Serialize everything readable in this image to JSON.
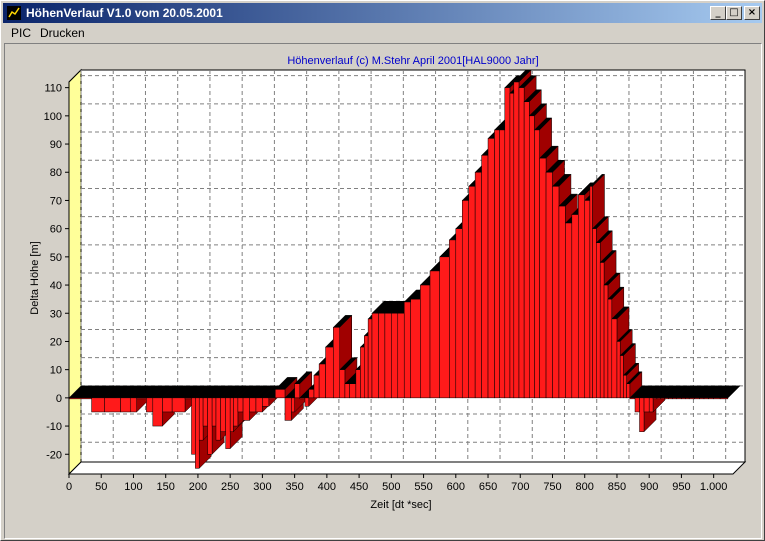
{
  "window": {
    "title": "HöhenVerlauf V1.0 vom 20.05.2001",
    "buttons": {
      "minimize": "_",
      "maximize": "□",
      "close": "×"
    }
  },
  "menu": {
    "items": [
      "PIC",
      "Drucken"
    ]
  },
  "colors": {
    "title_gradient_start": "#0a246a",
    "title_gradient_end": "#a6caf0",
    "chart_title": "#0000cc",
    "bar_front": "#ff1a1a",
    "bar_side": "#a00000",
    "bar_top": "#000000",
    "wall": "#ffff99"
  },
  "chart_data": {
    "type": "bar",
    "style": "3d-step",
    "title": "Höhenverlauf (c) M.Stehr April 2001[HAL9000 Jahr]",
    "xlabel": "Zeit [dt *sec]",
    "ylabel": "Delta Höhe [m]",
    "xlim": [
      0,
      1030
    ],
    "ylim": [
      -27,
      112
    ],
    "xticks": [
      0,
      50,
      100,
      150,
      200,
      250,
      300,
      350,
      400,
      450,
      500,
      550,
      600,
      650,
      700,
      750,
      800,
      850,
      900,
      950,
      1000
    ],
    "xtick_labels": [
      "0",
      "50",
      "100",
      "150",
      "200",
      "250",
      "300",
      "350",
      "400",
      "450",
      "500",
      "550",
      "600",
      "650",
      "700",
      "750",
      "800",
      "850",
      "900",
      "950",
      "1.000"
    ],
    "yticks": [
      -20,
      -10,
      0,
      10,
      20,
      30,
      40,
      50,
      60,
      70,
      80,
      90,
      100,
      110
    ],
    "grid": true,
    "series": [
      {
        "x": [
          0,
          35,
          55,
          80,
          95,
          105,
          120,
          130,
          145,
          160,
          180,
          190,
          196,
          202,
          208,
          215,
          222,
          228,
          235,
          243,
          250,
          255,
          262,
          270,
          280,
          290,
          300,
          310,
          320,
          335,
          345,
          350,
          358,
          366,
          372,
          380,
          388,
          398,
          410,
          420,
          428,
          435,
          445,
          452,
          458,
          464,
          470,
          480,
          490,
          500,
          510,
          520,
          530,
          545,
          560,
          575,
          590,
          600,
          610,
          620,
          630,
          640,
          650,
          660,
          668,
          676,
          684,
          690,
          698,
          706,
          714,
          722,
          730,
          740,
          750,
          760,
          770,
          780,
          790,
          800,
          808,
          812,
          818,
          824,
          830,
          836,
          842,
          850,
          855,
          860,
          865,
          870,
          878,
          885,
          892,
          900,
          906,
          912,
          918,
          924,
          930,
          936,
          942,
          950,
          956,
          962,
          970,
          978,
          985,
          992,
          1000,
          1010
        ],
        "values": [
          0,
          -5,
          -5,
          -5,
          -5,
          0,
          -5,
          -10,
          -5,
          -5,
          0,
          -20,
          -25,
          -15,
          -10,
          -20,
          -10,
          -15,
          -12,
          -18,
          -12,
          -10,
          -5,
          -8,
          -5,
          -5,
          -3,
          0,
          3,
          -8,
          -5,
          5,
          0,
          -3,
          3,
          8,
          12,
          18,
          25,
          10,
          5,
          5,
          10,
          18,
          22,
          28,
          30,
          30,
          30,
          30,
          30,
          34,
          35,
          40,
          45,
          50,
          56,
          60,
          70,
          75,
          80,
          86,
          92,
          95,
          95,
          110,
          108,
          112,
          110,
          105,
          100,
          95,
          85,
          80,
          75,
          68,
          62,
          65,
          72,
          70,
          75,
          60,
          55,
          48,
          40,
          35,
          28,
          20,
          15,
          8,
          5,
          0,
          -5,
          -12,
          -5,
          -5,
          0,
          0,
          0,
          0,
          0,
          0,
          0,
          0,
          0,
          0,
          0,
          0,
          0,
          0,
          0,
          0
        ]
      }
    ]
  }
}
